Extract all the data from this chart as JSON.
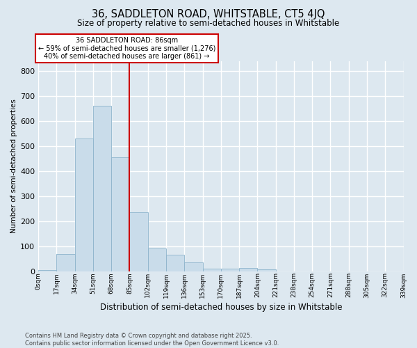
{
  "title1": "36, SADDLETON ROAD, WHITSTABLE, CT5 4JQ",
  "title2": "Size of property relative to semi-detached houses in Whitstable",
  "xlabel": "Distribution of semi-detached houses by size in Whitstable",
  "ylabel": "Number of semi-detached properties",
  "bin_labels": [
    "0sqm",
    "17sqm",
    "34sqm",
    "51sqm",
    "68sqm",
    "85sqm",
    "102sqm",
    "119sqm",
    "136sqm",
    "153sqm",
    "170sqm",
    "187sqm",
    "204sqm",
    "221sqm",
    "238sqm",
    "254sqm",
    "271sqm",
    "288sqm",
    "305sqm",
    "322sqm",
    "339sqm"
  ],
  "bar_heights": [
    5,
    70,
    530,
    660,
    455,
    235,
    90,
    65,
    35,
    10,
    10,
    13,
    7,
    0,
    0,
    0,
    0,
    0,
    0,
    0
  ],
  "bar_color": "#c9dcea",
  "bar_edge_color": "#8db4cc",
  "vline_x_bar_index": 5,
  "vline_color": "#cc0000",
  "annotation_line1": "36 SADDLETON ROAD: 86sqm",
  "annotation_line2": "← 59% of semi-detached houses are smaller (1,276)",
  "annotation_line3": "40% of semi-detached houses are larger (861) →",
  "annotation_box_color": "#ffffff",
  "annotation_box_edge": "#cc0000",
  "ylim_max": 840,
  "yticks": [
    0,
    100,
    200,
    300,
    400,
    500,
    600,
    700,
    800
  ],
  "footnote_line1": "Contains HM Land Registry data © Crown copyright and database right 2025.",
  "footnote_line2": "Contains public sector information licensed under the Open Government Licence v3.0.",
  "bg_color": "#dde8f0",
  "grid_color": "#ffffff"
}
